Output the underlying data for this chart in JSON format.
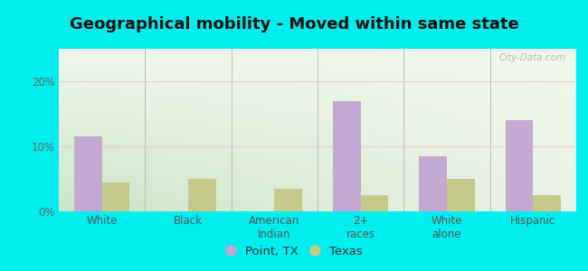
{
  "title": "Geographical mobility - Moved within same state",
  "categories": [
    "White",
    "Black",
    "American\nIndian",
    "2+\nraces",
    "White\nalone",
    "Hispanic"
  ],
  "point_tx_values": [
    11.5,
    0,
    0,
    17.0,
    8.5,
    14.0
  ],
  "texas_values": [
    4.5,
    5.0,
    3.5,
    2.5,
    5.0,
    2.5
  ],
  "point_tx_color": "#c4a8d4",
  "texas_color": "#c5c98a",
  "bar_width": 0.32,
  "ylim": [
    0,
    25
  ],
  "yticks": [
    0,
    10,
    20
  ],
  "ytick_labels": [
    "0%",
    "10%",
    "20%"
  ],
  "background_color": "#00eeee",
  "grid_color": "#f0c8cc",
  "watermark": "City-Data.com",
  "legend_labels": [
    "Point, TX",
    "Texas"
  ],
  "title_fontsize": 13,
  "tick_fontsize": 8.5,
  "legend_fontsize": 9.5
}
